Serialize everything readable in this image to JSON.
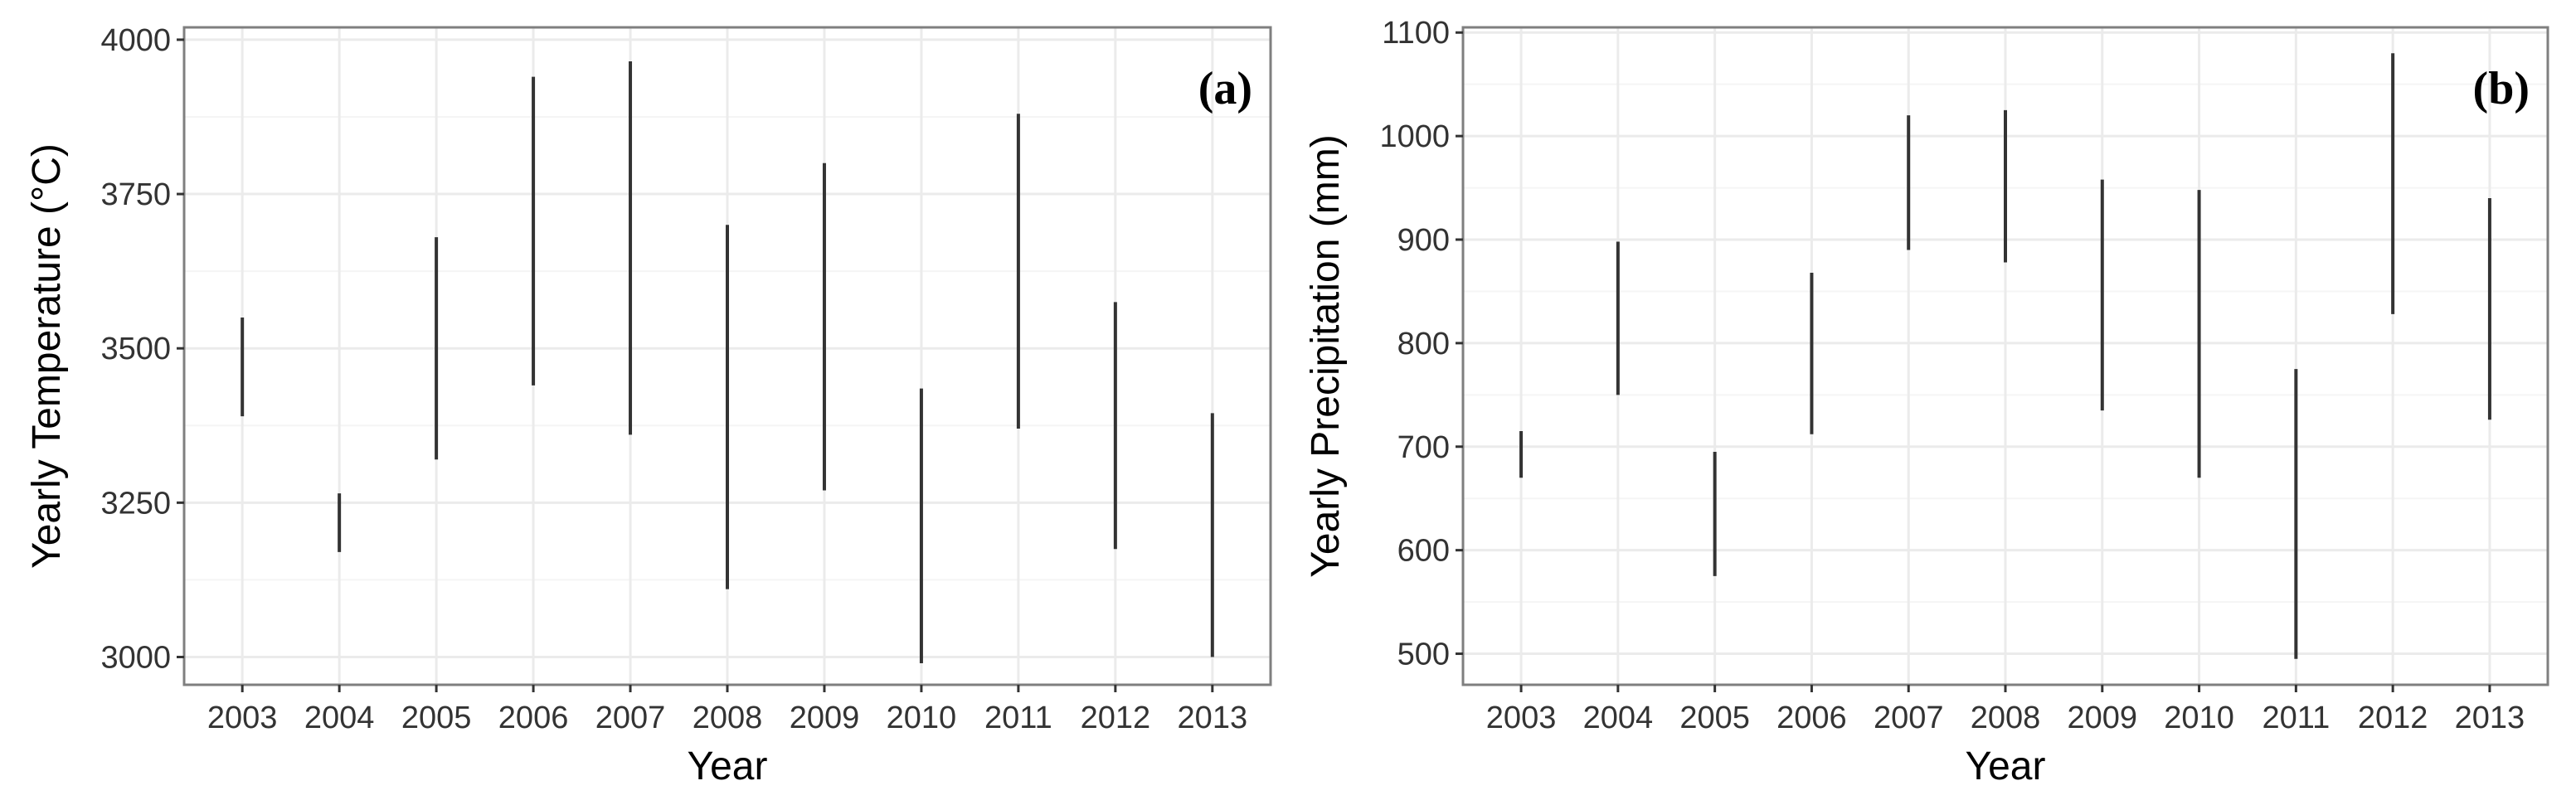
{
  "chart_data": [
    {
      "type": "range",
      "panel_label": "(a)",
      "xlabel": "Year",
      "ylabel": "Yearly Temperature (°C)",
      "categories": [
        "2003",
        "2004",
        "2005",
        "2006",
        "2007",
        "2008",
        "2009",
        "2010",
        "2011",
        "2012",
        "2013"
      ],
      "ylim": [
        2955,
        4020
      ],
      "yticks": [
        3000,
        3250,
        3500,
        3750,
        4000
      ],
      "grid": true,
      "ranges": [
        {
          "x": "2003",
          "low": 3390,
          "high": 3550
        },
        {
          "x": "2004",
          "low": 3170,
          "high": 3265
        },
        {
          "x": "2005",
          "low": 3320,
          "high": 3680
        },
        {
          "x": "2006",
          "low": 3440,
          "high": 3940
        },
        {
          "x": "2007",
          "low": 3360,
          "high": 3965
        },
        {
          "x": "2008",
          "low": 3110,
          "high": 3700
        },
        {
          "x": "2009",
          "low": 3270,
          "high": 3800
        },
        {
          "x": "2010",
          "low": 2990,
          "high": 3435
        },
        {
          "x": "2011",
          "low": 3370,
          "high": 3880
        },
        {
          "x": "2012",
          "low": 3175,
          "high": 3575
        },
        {
          "x": "2013",
          "low": 3000,
          "high": 3395
        }
      ]
    },
    {
      "type": "range",
      "panel_label": "(b)",
      "xlabel": "Year",
      "ylabel": "Yearly Precipitation (mm)",
      "categories": [
        "2003",
        "2004",
        "2005",
        "2006",
        "2007",
        "2008",
        "2009",
        "2010",
        "2011",
        "2012",
        "2013"
      ],
      "ylim": [
        470,
        1105
      ],
      "yticks": [
        500,
        600,
        700,
        800,
        900,
        1000,
        1100
      ],
      "grid": true,
      "ranges": [
        {
          "x": "2003",
          "low": 670,
          "high": 715
        },
        {
          "x": "2004",
          "low": 750,
          "high": 898
        },
        {
          "x": "2005",
          "low": 575,
          "high": 695
        },
        {
          "x": "2006",
          "low": 712,
          "high": 868
        },
        {
          "x": "2007",
          "low": 890,
          "high": 1020
        },
        {
          "x": "2008",
          "low": 878,
          "high": 1025
        },
        {
          "x": "2009",
          "low": 735,
          "high": 958
        },
        {
          "x": "2010",
          "low": 670,
          "high": 948
        },
        {
          "x": "2011",
          "low": 495,
          "high": 775
        },
        {
          "x": "2012",
          "low": 828,
          "high": 1080
        },
        {
          "x": "2013",
          "low": 726,
          "high": 940
        }
      ]
    }
  ],
  "colors": {
    "background": "#ffffff",
    "panel_border": "#7f7f7f",
    "grid_major": "#ebebeb",
    "grid_minor": "#f5f5f5",
    "range_line": "#333333",
    "tick_text": "#333333"
  }
}
